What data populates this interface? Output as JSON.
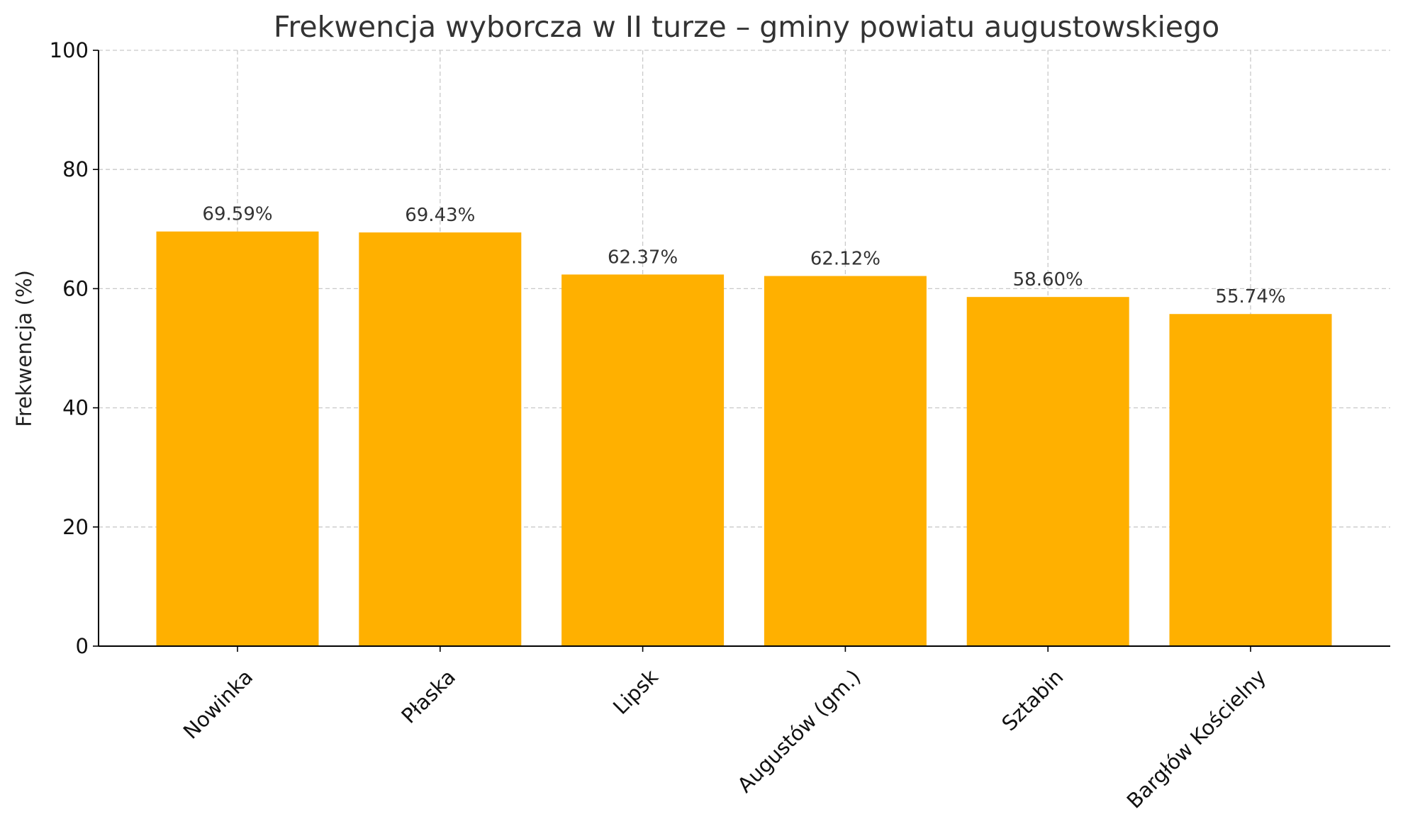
{
  "chart_data": {
    "type": "bar",
    "title": "Frekwencja wyborcza w II turze – gminy powiatu augustowskiego",
    "xlabel": "",
    "ylabel": "Frekwencja (%)",
    "categories": [
      "Nowinka",
      "Płaska",
      "Lipsk",
      "Augustów (gm.)",
      "Sztabin",
      "Bargłów Kościelny"
    ],
    "values": [
      69.59,
      69.43,
      62.37,
      62.12,
      58.6,
      55.74
    ],
    "value_labels": [
      "69.59%",
      "69.43%",
      "62.37%",
      "62.12%",
      "58.60%",
      "55.74%"
    ],
    "ylim": [
      0,
      100
    ],
    "yticks": [
      "0",
      "20",
      "40",
      "60",
      "80",
      "100"
    ],
    "grid": true,
    "bar_color": "#FFB000"
  }
}
